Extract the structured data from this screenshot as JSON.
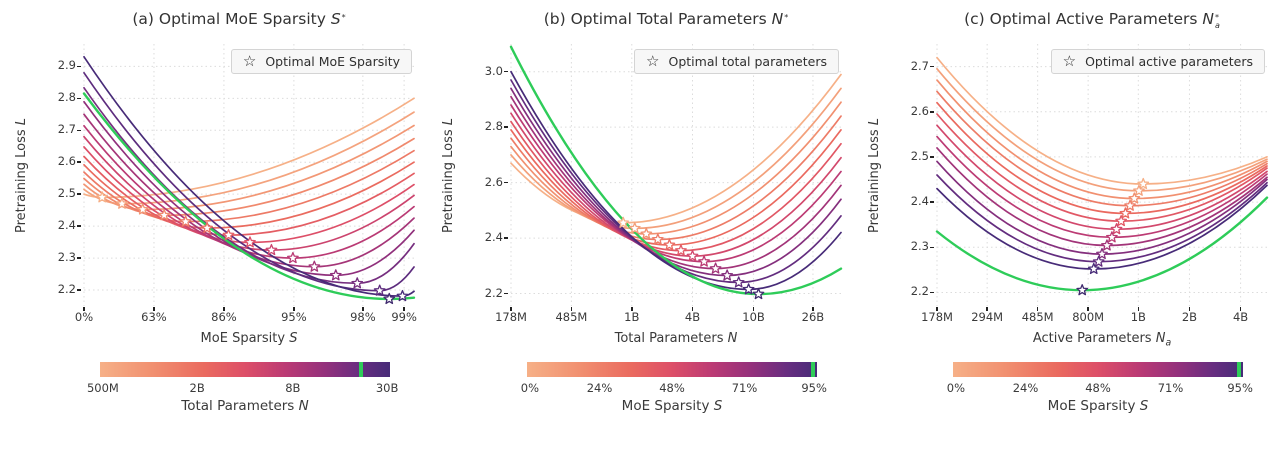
{
  "colors": {
    "cmap": [
      {
        "t": 0,
        "c": "#f6b087"
      },
      {
        "t": 0.18,
        "c": "#f19070"
      },
      {
        "t": 0.36,
        "c": "#ea6a5f"
      },
      {
        "t": 0.5,
        "c": "#dd4f68"
      },
      {
        "t": 0.64,
        "c": "#bb3a74"
      },
      {
        "t": 0.78,
        "c": "#92307c"
      },
      {
        "t": 0.9,
        "c": "#662d80"
      },
      {
        "t": 1,
        "c": "#472b78"
      }
    ],
    "green": "#2ecc59",
    "green_star_edge": "#3f2a6e",
    "grid": "#dcdcdc",
    "text": "#3a3a3a"
  },
  "chart_data": [
    {
      "type": "line",
      "panel": "a",
      "title": {
        "text": "(a) Optimal MoE Sparsity ",
        "math": "S",
        "sup": "*",
        "sub": ""
      },
      "legend": {
        "marker": "star-icon",
        "label": "Optimal MoE Sparsity"
      },
      "xlabel": {
        "text": "MoE Sparsity ",
        "math": "S"
      },
      "ylabel": {
        "text": "Pretraining Loss ",
        "math": "L"
      },
      "xticks": [
        {
          "label": "0%",
          "pos": 0
        },
        {
          "label": "63%",
          "pos": 0.212
        },
        {
          "label": "86%",
          "pos": 0.424
        },
        {
          "label": "95%",
          "pos": 0.636
        },
        {
          "label": "98%",
          "pos": 0.845
        },
        {
          "label": "99%",
          "pos": 0.97
        }
      ],
      "yticks": [
        {
          "label": "2.2",
          "value": 2.2
        },
        {
          "label": "2.3",
          "value": 2.3
        },
        {
          "label": "2.4",
          "value": 2.4
        },
        {
          "label": "2.5",
          "value": 2.5
        },
        {
          "label": "2.6",
          "value": 2.6
        },
        {
          "label": "2.7",
          "value": 2.7
        },
        {
          "label": "2.8",
          "value": 2.8
        },
        {
          "label": "2.9",
          "value": 2.9
        }
      ],
      "ylim": [
        2.15,
        2.97
      ],
      "curves": [
        {
          "t": 0.0,
          "xl": 0,
          "yl": 2.5,
          "xm": 0.055,
          "ym": 2.49,
          "xr": 1,
          "yr": 2.8,
          "star": true
        },
        {
          "t": 0.071,
          "xl": 0,
          "yl": 2.515,
          "xm": 0.115,
          "ym": 2.47,
          "xr": 1,
          "yr": 2.757,
          "star": true
        },
        {
          "t": 0.143,
          "xl": 0,
          "yl": 2.531,
          "xm": 0.178,
          "ym": 2.452,
          "xr": 1,
          "yr": 2.715,
          "star": true
        },
        {
          "t": 0.214,
          "xl": 0,
          "yl": 2.549,
          "xm": 0.243,
          "ym": 2.434,
          "xr": 1,
          "yr": 2.674,
          "star": true
        },
        {
          "t": 0.286,
          "xl": 0,
          "yl": 2.569,
          "xm": 0.308,
          "ym": 2.414,
          "xr": 1,
          "yr": 2.636,
          "star": true
        },
        {
          "t": 0.357,
          "xl": 0,
          "yl": 2.592,
          "xm": 0.373,
          "ym": 2.394,
          "xr": 1,
          "yr": 2.6,
          "star": true
        },
        {
          "t": 0.429,
          "xl": 0,
          "yl": 2.618,
          "xm": 0.438,
          "ym": 2.372,
          "xr": 1,
          "yr": 2.565,
          "star": true
        },
        {
          "t": 0.5,
          "xl": 0,
          "yl": 2.648,
          "xm": 0.503,
          "ym": 2.349,
          "xr": 1,
          "yr": 2.53,
          "star": true
        },
        {
          "t": 0.571,
          "xl": 0,
          "yl": 2.68,
          "xm": 0.568,
          "ym": 2.325,
          "xr": 1,
          "yr": 2.496,
          "star": true
        },
        {
          "t": 0.643,
          "xl": 0,
          "yl": 2.714,
          "xm": 0.633,
          "ym": 2.3,
          "xr": 1,
          "yr": 2.461,
          "star": true
        },
        {
          "t": 0.714,
          "xl": 0,
          "yl": 2.75,
          "xm": 0.698,
          "ym": 2.273,
          "xr": 1,
          "yr": 2.425,
          "star": true
        },
        {
          "t": 0.786,
          "xl": 0,
          "yl": 2.789,
          "xm": 0.763,
          "ym": 2.246,
          "xr": 1,
          "yr": 2.387,
          "star": true
        },
        {
          "t": 0.857,
          "xl": 0,
          "yl": 2.833,
          "xm": 0.828,
          "ym": 2.221,
          "xr": 1,
          "yr": 2.345,
          "star": true
        },
        {
          "t": 0.929,
          "xl": 0,
          "yl": 2.88,
          "xm": 0.896,
          "ym": 2.198,
          "xr": 1,
          "yr": 2.272,
          "star": true
        },
        {
          "t": 1.0,
          "xl": 0,
          "yl": 2.93,
          "xm": 0.965,
          "ym": 2.181,
          "xr": 1,
          "yr": 2.196,
          "star": true
        },
        {
          "green": true,
          "xl": 0,
          "yl": 2.815,
          "xm": 0.925,
          "ym": 2.172,
          "xr": 1,
          "yr": 2.176,
          "star": true
        }
      ],
      "colorbar": {
        "ticks": [
          {
            "label": "500M",
            "pos": 0.01
          },
          {
            "label": "2B",
            "pos": 0.335
          },
          {
            "label": "8B",
            "pos": 0.665
          },
          {
            "label": "30B",
            "pos": 0.99
          }
        ],
        "label": {
          "text": "Total Parameters ",
          "math": "N"
        },
        "marker_pos": 0.9
      }
    },
    {
      "type": "line",
      "panel": "b",
      "title": {
        "text": "(b) Optimal Total Parameters ",
        "math": "N",
        "sup": "*",
        "sub": ""
      },
      "legend": {
        "marker": "star-icon",
        "label": "Optimal total parameters"
      },
      "xlabel": {
        "text": "Total Parameters ",
        "math": "N"
      },
      "ylabel": {
        "text": "Pretraining Loss ",
        "math": "L"
      },
      "xticks": [
        {
          "label": "178M",
          "pos": 0
        },
        {
          "label": "485M",
          "pos": 0.183
        },
        {
          "label": "1B",
          "pos": 0.366
        },
        {
          "label": "4B",
          "pos": 0.55
        },
        {
          "label": "10B",
          "pos": 0.735
        },
        {
          "label": "26B",
          "pos": 0.915
        }
      ],
      "yticks": [
        {
          "label": "2.2",
          "value": 2.2
        },
        {
          "label": "2.4",
          "value": 2.4
        },
        {
          "label": "2.6",
          "value": 2.6
        },
        {
          "label": "2.8",
          "value": 2.8
        },
        {
          "label": "3.0",
          "value": 3.0
        }
      ],
      "ylim": [
        2.155,
        3.1
      ],
      "curves": [
        {
          "t": 0.0,
          "xl": 0,
          "yl": 2.67,
          "xm": 0.34,
          "ym": 2.455,
          "xr": 1,
          "yr": 2.99,
          "star": true
        },
        {
          "t": 0.091,
          "xl": 0,
          "yl": 2.7,
          "xm": 0.375,
          "ym": 2.435,
          "xr": 1,
          "yr": 2.94,
          "star": true
        },
        {
          "t": 0.182,
          "xl": 0,
          "yl": 2.73,
          "xm": 0.41,
          "ym": 2.415,
          "xr": 1,
          "yr": 2.89,
          "star": true
        },
        {
          "t": 0.273,
          "xl": 0,
          "yl": 2.76,
          "xm": 0.445,
          "ym": 2.395,
          "xr": 1,
          "yr": 2.84,
          "star": true
        },
        {
          "t": 0.364,
          "xl": 0,
          "yl": 2.79,
          "xm": 0.48,
          "ym": 2.375,
          "xr": 1,
          "yr": 2.79,
          "star": true
        },
        {
          "t": 0.455,
          "xl": 0,
          "yl": 2.82,
          "xm": 0.515,
          "ym": 2.355,
          "xr": 1,
          "yr": 2.74,
          "star": true
        },
        {
          "t": 0.545,
          "xl": 0,
          "yl": 2.85,
          "xm": 0.55,
          "ym": 2.335,
          "xr": 1,
          "yr": 2.69,
          "star": true
        },
        {
          "t": 0.636,
          "xl": 0,
          "yl": 2.88,
          "xm": 0.585,
          "ym": 2.315,
          "xr": 1,
          "yr": 2.64,
          "star": true
        },
        {
          "t": 0.727,
          "xl": 0,
          "yl": 2.91,
          "xm": 0.62,
          "ym": 2.29,
          "xr": 1,
          "yr": 2.59,
          "star": true
        },
        {
          "t": 0.818,
          "xl": 0,
          "yl": 2.94,
          "xm": 0.655,
          "ym": 2.265,
          "xr": 1,
          "yr": 2.54,
          "star": true
        },
        {
          "t": 0.909,
          "xl": 0,
          "yl": 2.97,
          "xm": 0.69,
          "ym": 2.24,
          "xr": 1,
          "yr": 2.48,
          "star": true
        },
        {
          "t": 1.0,
          "xl": 0,
          "yl": 3.0,
          "xm": 0.72,
          "ym": 2.215,
          "xr": 1,
          "yr": 2.42,
          "star": true
        },
        {
          "green": true,
          "xl": 0,
          "yl": 3.09,
          "xm": 0.75,
          "ym": 2.198,
          "xr": 1,
          "yr": 2.29,
          "star": true
        }
      ],
      "colorbar": {
        "ticks": [
          {
            "label": "0%",
            "pos": 0.01
          },
          {
            "label": "24%",
            "pos": 0.25
          },
          {
            "label": "48%",
            "pos": 0.5
          },
          {
            "label": "71%",
            "pos": 0.75
          },
          {
            "label": "95%",
            "pos": 0.99
          }
        ],
        "label": {
          "text": "MoE Sparsity ",
          "math": "S"
        },
        "marker_pos": 0.985
      }
    },
    {
      "type": "line",
      "panel": "c",
      "title": {
        "text": "(c) Optimal Active Parameters ",
        "math": "N",
        "sup": "*",
        "sub": "a"
      },
      "legend": {
        "marker": "star-icon",
        "label": "Optimal active parameters"
      },
      "xlabel": {
        "text": "Active Parameters ",
        "math": "N",
        "sub": "a"
      },
      "ylabel": {
        "text": "Pretraining Loss ",
        "math": "L"
      },
      "xticks": [
        {
          "label": "178M",
          "pos": 0
        },
        {
          "label": "294M",
          "pos": 0.152
        },
        {
          "label": "485M",
          "pos": 0.305
        },
        {
          "label": "800M",
          "pos": 0.458
        },
        {
          "label": "1B",
          "pos": 0.61
        },
        {
          "label": "2B",
          "pos": 0.765
        },
        {
          "label": "4B",
          "pos": 0.92
        }
      ],
      "yticks": [
        {
          "label": "2.2",
          "value": 2.2
        },
        {
          "label": "2.3",
          "value": 2.3
        },
        {
          "label": "2.4",
          "value": 2.4
        },
        {
          "label": "2.5",
          "value": 2.5
        },
        {
          "label": "2.6",
          "value": 2.6
        },
        {
          "label": "2.7",
          "value": 2.7
        }
      ],
      "ylim": [
        2.17,
        2.75
      ],
      "curves": [
        {
          "t": 0.0,
          "xl": 0,
          "yl": 2.72,
          "xm": 0.625,
          "ym": 2.44,
          "xr": 1,
          "yr": 2.5,
          "star": true
        },
        {
          "t": 0.091,
          "xl": 0,
          "yl": 2.695,
          "xm": 0.612,
          "ym": 2.425,
          "xr": 1,
          "yr": 2.495,
          "star": true
        },
        {
          "t": 0.182,
          "xl": 0,
          "yl": 2.67,
          "xm": 0.598,
          "ym": 2.408,
          "xr": 1,
          "yr": 2.49,
          "star": true
        },
        {
          "t": 0.273,
          "xl": 0,
          "yl": 2.645,
          "xm": 0.585,
          "ym": 2.392,
          "xr": 1,
          "yr": 2.485,
          "star": true
        },
        {
          "t": 0.364,
          "xl": 0,
          "yl": 2.62,
          "xm": 0.571,
          "ym": 2.375,
          "xr": 1,
          "yr": 2.48,
          "star": true
        },
        {
          "t": 0.455,
          "xl": 0,
          "yl": 2.595,
          "xm": 0.558,
          "ym": 2.358,
          "xr": 1,
          "yr": 2.475,
          "star": true
        },
        {
          "t": 0.545,
          "xl": 0,
          "yl": 2.57,
          "xm": 0.544,
          "ym": 2.34,
          "xr": 1,
          "yr": 2.468,
          "star": true
        },
        {
          "t": 0.636,
          "xl": 0,
          "yl": 2.545,
          "xm": 0.53,
          "ym": 2.322,
          "xr": 1,
          "yr": 2.462,
          "star": true
        },
        {
          "t": 0.727,
          "xl": 0,
          "yl": 2.52,
          "xm": 0.515,
          "ym": 2.304,
          "xr": 1,
          "yr": 2.455,
          "star": true
        },
        {
          "t": 0.818,
          "xl": 0,
          "yl": 2.49,
          "xm": 0.5,
          "ym": 2.285,
          "xr": 1,
          "yr": 2.45,
          "star": true
        },
        {
          "t": 0.909,
          "xl": 0,
          "yl": 2.46,
          "xm": 0.49,
          "ym": 2.268,
          "xr": 1,
          "yr": 2.443,
          "star": true
        },
        {
          "t": 1.0,
          "xl": 0,
          "yl": 2.43,
          "xm": 0.475,
          "ym": 2.252,
          "xr": 1,
          "yr": 2.437,
          "star": true
        },
        {
          "green": true,
          "xl": 0,
          "yl": 2.335,
          "xm": 0.44,
          "ym": 2.205,
          "xr": 1,
          "yr": 2.41,
          "star": true
        }
      ],
      "colorbar": {
        "ticks": [
          {
            "label": "0%",
            "pos": 0.01
          },
          {
            "label": "24%",
            "pos": 0.25
          },
          {
            "label": "48%",
            "pos": 0.5
          },
          {
            "label": "71%",
            "pos": 0.75
          },
          {
            "label": "95%",
            "pos": 0.99
          }
        ],
        "label": {
          "text": "MoE Sparsity ",
          "math": "S"
        },
        "marker_pos": 0.985
      }
    }
  ]
}
